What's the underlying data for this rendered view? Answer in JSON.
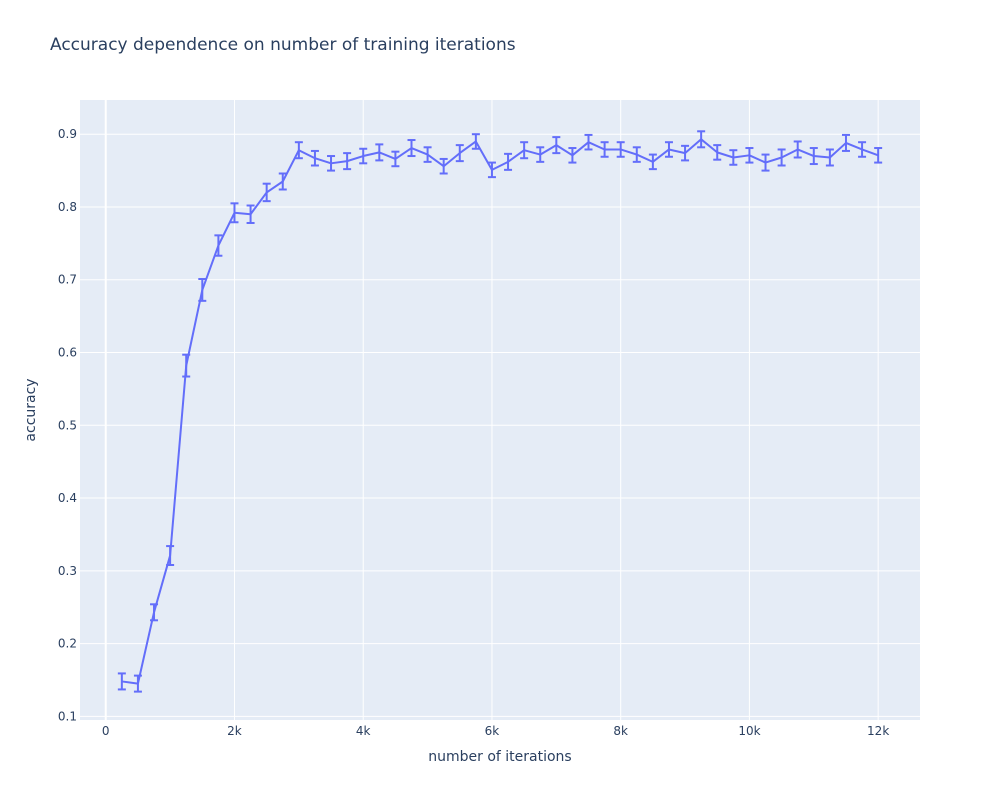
{
  "chart_data": {
    "type": "line",
    "title": "Accuracy dependence on number of training iterations",
    "xlabel": "number of iterations",
    "ylabel": "accuracy",
    "xlim": [
      -400,
      12650
    ],
    "ylim": [
      0.095,
      0.947
    ],
    "x_ticks": [
      0,
      2000,
      4000,
      6000,
      8000,
      10000,
      12000
    ],
    "x_tick_labels": [
      "0",
      "2k",
      "4k",
      "6k",
      "8k",
      "10k",
      "12k"
    ],
    "y_ticks": [
      0.1,
      0.2,
      0.3,
      0.4,
      0.5,
      0.6,
      0.7,
      0.8,
      0.9
    ],
    "y_tick_labels": [
      "0.1",
      "0.2",
      "0.3",
      "0.4",
      "0.5",
      "0.6",
      "0.7",
      "0.8",
      "0.9"
    ],
    "grid": true,
    "colors": {
      "line": "#636efa",
      "plot_bg": "#e5ecf6",
      "grid": "#ffffff",
      "text": "#2a3f5f"
    },
    "series": [
      {
        "x": [
          250,
          500,
          750,
          1000,
          1250,
          1500,
          1750,
          2000,
          2250,
          2500,
          2750,
          3000,
          3250,
          3500,
          3750,
          4000,
          4250,
          4500,
          4750,
          5000,
          5250,
          5500,
          5750,
          6000,
          6250,
          6500,
          6750,
          7000,
          7250,
          7500,
          7750,
          8000,
          8250,
          8500,
          8750,
          9000,
          9250,
          9500,
          9750,
          10000,
          10250,
          10500,
          10750,
          11000,
          11250,
          11500,
          11750,
          12000
        ],
        "y": [
          0.148,
          0.145,
          0.243,
          0.321,
          0.582,
          0.686,
          0.747,
          0.792,
          0.79,
          0.82,
          0.835,
          0.878,
          0.867,
          0.86,
          0.863,
          0.87,
          0.875,
          0.866,
          0.881,
          0.872,
          0.856,
          0.874,
          0.89,
          0.851,
          0.862,
          0.878,
          0.872,
          0.885,
          0.871,
          0.889,
          0.879,
          0.879,
          0.872,
          0.862,
          0.879,
          0.874,
          0.893,
          0.875,
          0.868,
          0.871,
          0.861,
          0.868,
          0.879,
          0.87,
          0.868,
          0.888,
          0.879,
          0.871
        ],
        "error": [
          0.011,
          0.011,
          0.011,
          0.013,
          0.015,
          0.015,
          0.014,
          0.013,
          0.012,
          0.012,
          0.011,
          0.011,
          0.01,
          0.01,
          0.011,
          0.01,
          0.011,
          0.01,
          0.011,
          0.01,
          0.01,
          0.011,
          0.01,
          0.01,
          0.011,
          0.011,
          0.01,
          0.011,
          0.01,
          0.01,
          0.01,
          0.01,
          0.01,
          0.01,
          0.01,
          0.01,
          0.011,
          0.01,
          0.01,
          0.01,
          0.011,
          0.011,
          0.011,
          0.011,
          0.011,
          0.011,
          0.01,
          0.01
        ]
      }
    ]
  }
}
